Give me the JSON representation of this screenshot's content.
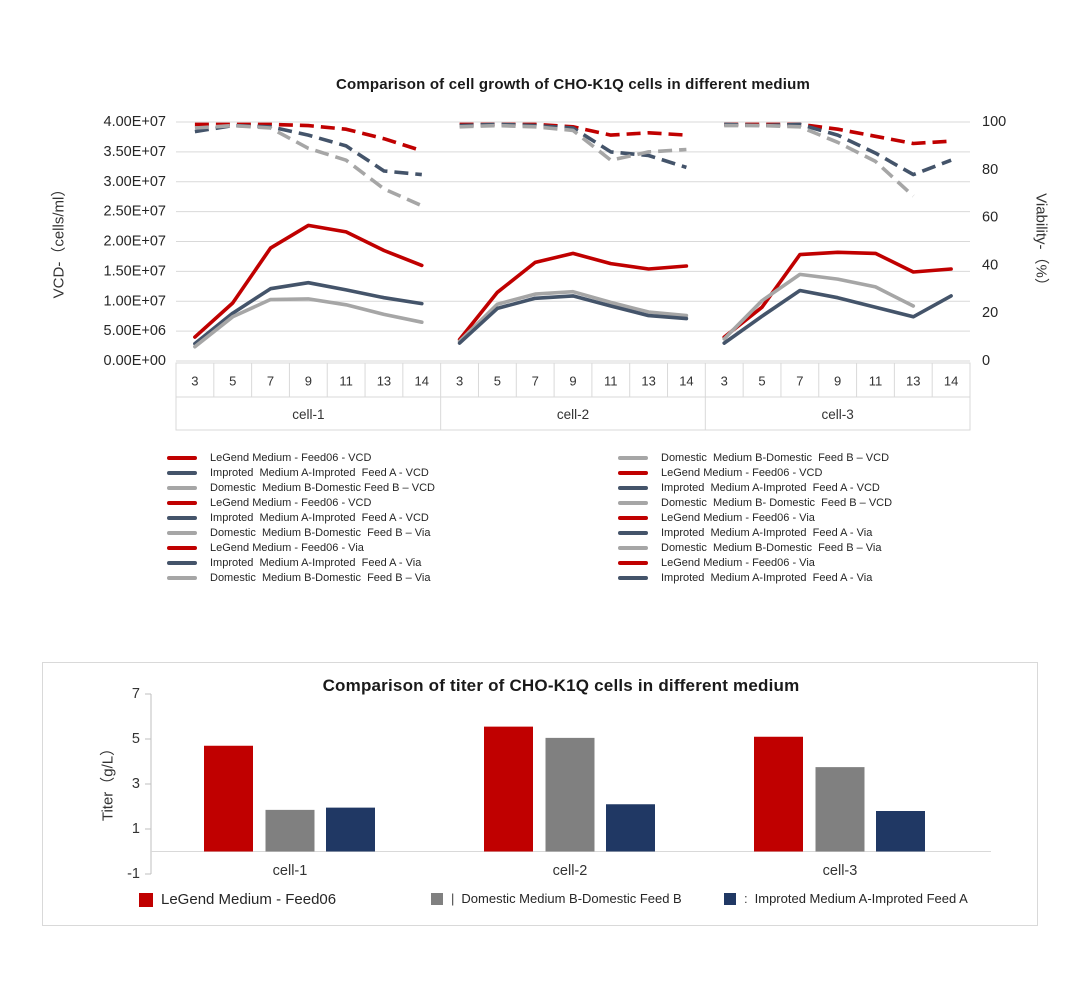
{
  "chart_data": [
    {
      "type": "line",
      "title": "Comparison of cell growth of CHO-K1Q cells in different medium",
      "ylabel_left": "VCD-（cells/ml）",
      "ylabel_right": "Viability-（%）",
      "ylim_left": [
        0,
        40000000.0
      ],
      "ylim_right": [
        0,
        100
      ],
      "grid": "horizontal",
      "x_days": [
        "3",
        "5",
        "7",
        "9",
        "11",
        "13",
        "14"
      ],
      "groups": [
        "cell-1",
        "cell-2",
        "cell-3"
      ],
      "left_tick_labels": [
        "4.00E+07",
        "3.50E+07",
        "3.00E+07",
        "2.50E+07",
        "2.00E+07",
        "1.50E+07",
        "1.00E+07",
        "5.00E+06",
        "0.00E+00"
      ],
      "right_tick_values": [
        100,
        80,
        60,
        40,
        20,
        0
      ],
      "right_tick_labels": [
        "100",
        "80",
        "60",
        "40",
        "20",
        "0"
      ],
      "series": [
        {
          "name": "LeGend Medium - Feed06 - VCD",
          "group": "cell-1",
          "axis": "left",
          "style": "solid",
          "color": "#C00000",
          "values": [
            4000000.0,
            9700000.0,
            18900000.0,
            22700000.0,
            21600000.0,
            18500000.0,
            16000000.0
          ]
        },
        {
          "name": "Improted  Medium A-Improted  Feed A - VCD",
          "group": "cell-1",
          "axis": "left",
          "style": "solid",
          "color": "#44546A",
          "values": [
            2900000.0,
            8000000.0,
            12100000.0,
            13100000.0,
            11900000.0,
            10600000.0,
            9600000.0
          ]
        },
        {
          "name": "Domestic  Medium B-Domestic Feed B – VCD",
          "group": "cell-1",
          "axis": "left",
          "style": "solid",
          "color": "#A6A6A6",
          "values": [
            2400000.0,
            7400000.0,
            10300000.0,
            10400000.0,
            9400000.0,
            7800000.0,
            6500000.0
          ]
        },
        {
          "name": "LeGend Medium - Feed06 - VCD",
          "group": "cell-2",
          "axis": "left",
          "style": "solid",
          "color": "#C00000",
          "values": [
            3600000.0,
            11500000.0,
            16500000.0,
            18000000.0,
            16300000.0,
            15400000.0,
            15900000.0
          ]
        },
        {
          "name": "Domestic  Medium B-Domestic  Feed B – VCD",
          "group": "cell-2",
          "axis": "left",
          "style": "solid",
          "color": "#A6A6A6",
          "values": [
            3300000.0,
            9500000.0,
            11200000.0,
            11600000.0,
            9800000.0,
            8200000.0,
            7600000.0
          ]
        },
        {
          "name": "Improted  Medium A-Improted  Feed A - VCD",
          "group": "cell-2",
          "axis": "left",
          "style": "solid",
          "color": "#44546A",
          "values": [
            3000000.0,
            8800000.0,
            10500000.0,
            10900000.0,
            9200000.0,
            7600000.0,
            7100000.0
          ]
        },
        {
          "name": "LeGend Medium - Feed06 - VCD",
          "group": "cell-3",
          "axis": "left",
          "style": "solid",
          "color": "#C00000",
          "values": [
            4000000.0,
            9000000.0,
            17800000.0,
            18200000.0,
            18000000.0,
            14900000.0,
            15400000.0
          ]
        },
        {
          "name": "Domestic  Medium B- Domestic  Feed B – VCD",
          "group": "cell-3",
          "axis": "left",
          "style": "solid",
          "color": "#A6A6A6",
          "values": [
            3700000.0,
            10100000.0,
            14500000.0,
            13700000.0,
            12400000.0,
            9200000.0,
            null
          ]
        },
        {
          "name": "Improted  Medium A-Improted  Feed A - VCD",
          "group": "cell-3",
          "axis": "left",
          "style": "solid",
          "color": "#44546A",
          "values": [
            3000000.0,
            7500000.0,
            11800000.0,
            10600000.0,
            9000000.0,
            7400000.0,
            10900000.0
          ]
        },
        {
          "name": "LeGend Medium - Feed06 - Via",
          "group": "cell-1",
          "axis": "right",
          "style": "dashed",
          "color": "#C00000",
          "values": [
            99,
            99,
            99,
            98.5,
            97,
            93,
            88
          ]
        },
        {
          "name": "Improted  Medium A-Improted  Feed A - Via",
          "group": "cell-1",
          "axis": "right",
          "style": "dashed",
          "color": "#44546A",
          "values": [
            96,
            98.5,
            98,
            94.5,
            90,
            79.5,
            78
          ]
        },
        {
          "name": "Domestic  Medium B-Domestic  Feed B – Via",
          "group": "cell-1",
          "axis": "right",
          "style": "dashed",
          "color": "#A6A6A6",
          "values": [
            97.5,
            98.5,
            97.5,
            89,
            84,
            72,
            65
          ]
        },
        {
          "name": "LeGend Medium - Feed06 - Via",
          "group": "cell-2",
          "axis": "right",
          "style": "dashed",
          "color": "#C00000",
          "values": [
            99,
            99,
            99,
            98,
            94.5,
            95.5,
            94.5
          ]
        },
        {
          "name": "Improted  Medium A-Improted  Feed A - Via",
          "group": "cell-2",
          "axis": "right",
          "style": "dashed",
          "color": "#44546A",
          "values": [
            98.5,
            99,
            98.5,
            97.5,
            87.5,
            86,
            81
          ]
        },
        {
          "name": "Domestic  Medium B-Domestic  Feed B – Via",
          "group": "cell-2",
          "axis": "right",
          "style": "dashed",
          "color": "#A6A6A6",
          "values": [
            98,
            98.5,
            98,
            96.5,
            84,
            87.5,
            88.5
          ]
        },
        {
          "name": "LeGend Medium - Feed06 - Via",
          "group": "cell-3",
          "axis": "right",
          "style": "dashed",
          "color": "#C00000",
          "values": [
            99,
            99,
            99,
            97,
            94,
            91,
            92
          ]
        },
        {
          "name": "Improted  Medium A-Improted  Feed A - Via",
          "group": "cell-3",
          "axis": "right",
          "style": "dashed",
          "color": "#44546A",
          "values": [
            99,
            98.5,
            99,
            94.5,
            87,
            78,
            84
          ]
        },
        {
          "name": "Domestic  Medium B-Domestic  Feed B – Via",
          "group": "cell-3",
          "axis": "right",
          "style": "dashed",
          "color": "#A6A6A6",
          "values": [
            98.5,
            98.5,
            98,
            91.5,
            83.5,
            69,
            null
          ]
        }
      ]
    },
    {
      "type": "bar",
      "title": "Comparison of titer of CHO-K1Q cells in different medium",
      "ylabel": "Titer（g/L）",
      "ylim": [
        -1,
        7
      ],
      "yticks": [
        7,
        5,
        3,
        1,
        -1
      ],
      "categories": [
        "cell-1",
        "cell-2",
        "cell-3"
      ],
      "legend_position": "bottom",
      "series": [
        {
          "name": "LeGend Medium - Feed06",
          "color": "#C00000",
          "values": [
            4.7,
            5.55,
            5.1
          ]
        },
        {
          "name": "Domestic Medium B-Domestic Feed B",
          "color": "#808080",
          "values": [
            1.85,
            5.05,
            3.75
          ]
        },
        {
          "name": "Improted Medium A-Improted Feed A",
          "color": "#203864",
          "values": [
            1.95,
            2.1,
            1.8
          ]
        }
      ]
    }
  ],
  "growth_legend_left": [
    {
      "color": "#C00000",
      "label": "LeGend Medium - Feed06 - VCD"
    },
    {
      "color": "#44546A",
      "label": "Improted  Medium A-Improted  Feed A - VCD"
    },
    {
      "color": "#A6A6A6",
      "label": "Domestic  Medium B-Domestic Feed B – VCD"
    },
    {
      "color": "#C00000",
      "label": "LeGend Medium - Feed06 - VCD"
    },
    {
      "color": "#44546A",
      "label": "Improted  Medium A-Improted  Feed A - VCD"
    },
    {
      "color": "#A6A6A6",
      "label": "Domestic  Medium B-Domestic  Feed B – Via"
    },
    {
      "color": "#C00000",
      "label": "LeGend Medium - Feed06 - Via"
    },
    {
      "color": "#44546A",
      "label": "Improted  Medium A-Improted  Feed A - Via"
    },
    {
      "color": "#A6A6A6",
      "label": "Domestic  Medium B-Domestic  Feed B – Via"
    }
  ],
  "growth_legend_right": [
    {
      "color": "#A6A6A6",
      "label": "Domestic  Medium B-Domestic  Feed B – VCD"
    },
    {
      "color": "#C00000",
      "label": "LeGend Medium - Feed06 - VCD"
    },
    {
      "color": "#44546A",
      "label": "Improted  Medium A-Improted  Feed A - VCD"
    },
    {
      "color": "#A6A6A6",
      "label": "Domestic  Medium B- Domestic  Feed B – VCD"
    },
    {
      "color": "#C00000",
      "label": "LeGend Medium - Feed06 - Via"
    },
    {
      "color": "#44546A",
      "label": "Improted  Medium A-Improted  Feed A - Via"
    },
    {
      "color": "#A6A6A6",
      "label": "Domestic  Medium B-Domestic  Feed B – Via"
    },
    {
      "color": "#C00000",
      "label": "LeGend Medium - Feed06 - Via"
    },
    {
      "color": "#44546A",
      "label": "Improted  Medium A-Improted  Feed A - Via"
    }
  ],
  "titer_legend": [
    {
      "color": "#C00000",
      "separator": "",
      "label": "LeGend Medium - Feed06"
    },
    {
      "color": "#808080",
      "separator": "|",
      "label": "Domestic Medium B-Domestic Feed B"
    },
    {
      "color": "#203864",
      "separator": ":",
      "label": "Improted Medium A-Improted Feed A"
    }
  ],
  "colors": {
    "legend_red": "#C00000",
    "line_navy": "#44546A",
    "line_gray": "#A6A6A6",
    "bar_gray": "#808080",
    "bar_navy": "#203864",
    "gridline": "#D9D9D9"
  }
}
